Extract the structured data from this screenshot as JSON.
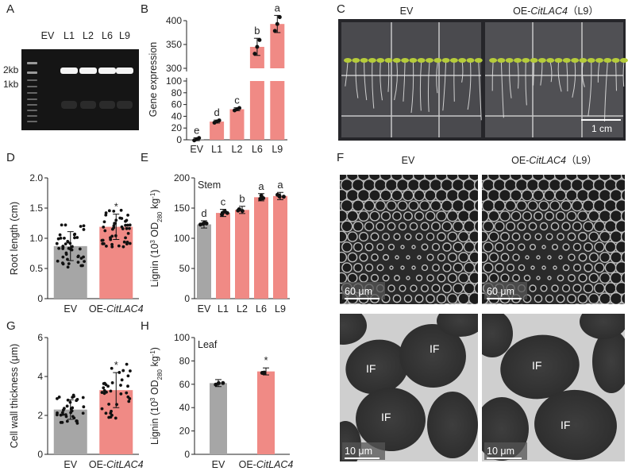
{
  "panel_labels": {
    "A": "A",
    "B": "B",
    "C": "C",
    "D": "D",
    "E": "E",
    "F": "F",
    "G": "G",
    "H": "H"
  },
  "colors": {
    "ev_bar": "#a6a6a6",
    "oe_bar": "#f08a85",
    "gel_bg": "#151515",
    "band": "#f4f4f4"
  },
  "gel": {
    "lanes": [
      "EV",
      "L1",
      "L2",
      "L6",
      "L9"
    ],
    "markers": [
      "2kb",
      "1kb"
    ],
    "bands_present": [
      false,
      true,
      true,
      true,
      true
    ]
  },
  "photo_c": {
    "left_label": "EV",
    "right_label_prefix": "OE-",
    "right_label_gene": "CitLAC4",
    "right_label_suffix": "（L9）",
    "scale_bar": "1 cm"
  },
  "sem_f": {
    "col1": "EV",
    "col2_prefix": "OE-",
    "col2_gene": "CitLAC4",
    "col2_suffix": "（L9）",
    "scale_top": "60 μm",
    "scale_bottom": "10 μm",
    "if_label": "IF"
  },
  "chart_data": [
    {
      "panel": "B",
      "type": "bar",
      "categories": [
        "EV",
        "L1",
        "L2",
        "L6",
        "L9"
      ],
      "values": [
        1,
        31,
        52,
        345,
        393
      ],
      "ylabel": "Gene expression",
      "broken_axis": {
        "lower_range": [
          0,
          100
        ],
        "upper_range": [
          300,
          400
        ],
        "lower_ticks": [
          "0",
          "20",
          "40",
          "60",
          "80",
          "100"
        ],
        "upper_ticks": [
          "300",
          "350",
          "400"
        ]
      },
      "significance": [
        "e",
        "d",
        "c",
        "b",
        "a"
      ]
    },
    {
      "panel": "D",
      "type": "bar",
      "categories": [
        "EV",
        "OE-CitLAC4"
      ],
      "values": [
        0.87,
        1.19
      ],
      "errors": [
        0.24,
        0.21
      ],
      "ylabel": "Root length (cm)",
      "ylim": [
        0,
        2.0
      ],
      "yticks": [
        "0",
        "0.5",
        "1.0",
        "1.5",
        "2.0"
      ],
      "significance": [
        "",
        "*"
      ]
    },
    {
      "panel": "E",
      "type": "bar",
      "categories": [
        "EV",
        "L1",
        "L2",
        "L6",
        "L9"
      ],
      "values": [
        123,
        142,
        147,
        168,
        170
      ],
      "ylabel_pre": "Lignin (10",
      "ylabel_sup": "3",
      "ylabel_mid": " OD",
      "ylabel_sub": "280",
      "ylabel_post": " kg",
      "ylabel_sup2": "-1",
      "ylabel_end": ")",
      "ylim": [
        0,
        200
      ],
      "yticks": [
        "0",
        "50",
        "100",
        "150",
        "200"
      ],
      "inset_label": "Stem",
      "significance": [
        "d",
        "c",
        "b",
        "a",
        "a"
      ]
    },
    {
      "panel": "G",
      "type": "bar",
      "categories": [
        "EV",
        "OE-CitLAC4"
      ],
      "values": [
        2.3,
        3.3
      ],
      "errors": [
        0.5,
        0.9
      ],
      "ylabel": "Cell wall thickness (μm)",
      "ylim": [
        0,
        6
      ],
      "yticks": [
        "0",
        "2",
        "4",
        "6"
      ],
      "significance": [
        "",
        "*"
      ]
    },
    {
      "panel": "H",
      "type": "bar",
      "categories": [
        "EV",
        "OE-CitLAC4"
      ],
      "values": [
        61,
        71
      ],
      "ylabel_pre": "Lignin (10",
      "ylabel_sup": "3",
      "ylabel_mid": " OD",
      "ylabel_sub": "280",
      "ylabel_post": " kg",
      "ylabel_sup2": "-1",
      "ylabel_end": ")",
      "ylim": [
        0,
        100
      ],
      "yticks": [
        "0",
        "20",
        "40",
        "60",
        "80",
        "100"
      ],
      "inset_label": "Leaf",
      "significance": [
        "",
        "*"
      ]
    }
  ]
}
